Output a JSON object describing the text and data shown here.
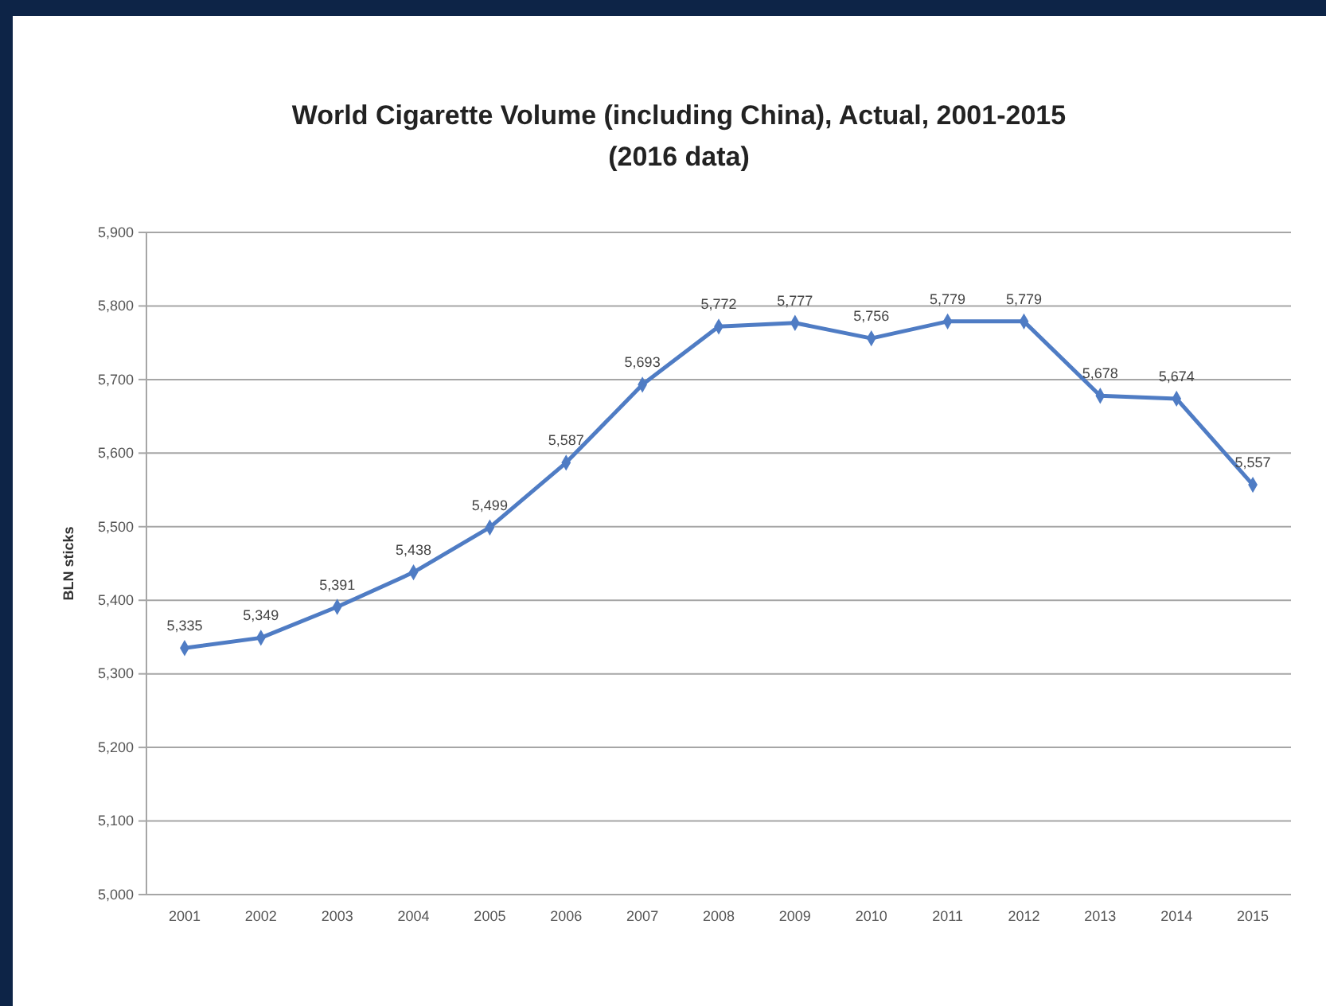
{
  "chart_data": {
    "type": "line",
    "title": "World Cigarette Volume (including China), Actual, 2001-2015",
    "subtitle": "(2016 data)",
    "ylabel": "BLN sticks",
    "categories": [
      "2001",
      "2002",
      "2003",
      "2004",
      "2005",
      "2006",
      "2007",
      "2008",
      "2009",
      "2010",
      "2011",
      "2012",
      "2013",
      "2014",
      "2015"
    ],
    "series": [
      {
        "color": "#4f7cc4",
        "values": [
          5335,
          5349,
          5391,
          5438,
          5499,
          5587,
          5693,
          5772,
          5777,
          5756,
          5779,
          5779,
          5678,
          5674,
          5557
        ],
        "value_labels": [
          "5,335",
          "5,349",
          "5,391",
          "5,438",
          "5,499",
          "5,587",
          "5,693",
          "5,772",
          "5,777",
          "5,756",
          "5,779",
          "5,779",
          "5,678",
          "5,674",
          "5,557"
        ]
      }
    ],
    "ylim": [
      5000,
      5900
    ],
    "yticks": [
      {
        "value": 5000,
        "label": "5,000"
      },
      {
        "value": 5100,
        "label": "5,100"
      },
      {
        "value": 5200,
        "label": "5,200"
      },
      {
        "value": 5300,
        "label": "5,300"
      },
      {
        "value": 5400,
        "label": "5,400"
      },
      {
        "value": 5500,
        "label": "5,500"
      },
      {
        "value": 5600,
        "label": "5,600"
      },
      {
        "value": 5700,
        "label": "5,700"
      },
      {
        "value": 5800,
        "label": "5,800"
      },
      {
        "value": 5900,
        "label": "5,900"
      }
    ],
    "grid": "y",
    "marker": "diamond",
    "line_style": "solid"
  }
}
